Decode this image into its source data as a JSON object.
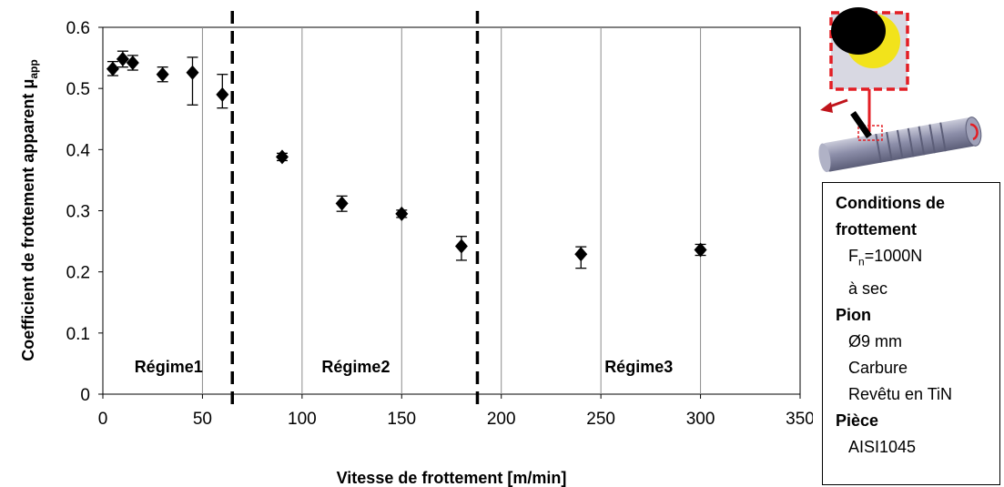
{
  "chart_data": {
    "type": "scatter",
    "xlabel": "Vitesse de frottement [m/min]",
    "ylabel": "Coefficient de frottement apparent μ",
    "ylabel_sub": "app",
    "xlim": [
      0,
      350
    ],
    "ylim": [
      0,
      0.6
    ],
    "x_ticks": [
      "0",
      "50",
      "100",
      "150",
      "200",
      "250",
      "300",
      "350"
    ],
    "y_ticks": [
      "0",
      "0.1",
      "0.2",
      "0.3",
      "0.4",
      "0.5",
      "0.6"
    ],
    "grid": "vertical",
    "marker_color": "#000000",
    "points": [
      {
        "x": 5,
        "y": 0.532,
        "err_low": 0.011,
        "err_high": 0.012
      },
      {
        "x": 10,
        "y": 0.548,
        "err_low": 0.013,
        "err_high": 0.013
      },
      {
        "x": 15,
        "y": 0.542,
        "err_low": 0.012,
        "err_high": 0.012
      },
      {
        "x": 30,
        "y": 0.523,
        "err_low": 0.012,
        "err_high": 0.012
      },
      {
        "x": 45,
        "y": 0.526,
        "err_low": 0.053,
        "err_high": 0.025
      },
      {
        "x": 60,
        "y": 0.49,
        "err_low": 0.022,
        "err_high": 0.033
      },
      {
        "x": 90,
        "y": 0.388,
        "err_low": 0.006,
        "err_high": 0.006
      },
      {
        "x": 120,
        "y": 0.312,
        "err_low": 0.013,
        "err_high": 0.012
      },
      {
        "x": 150,
        "y": 0.295,
        "err_low": 0.006,
        "err_high": 0.006
      },
      {
        "x": 180,
        "y": 0.242,
        "err_low": 0.023,
        "err_high": 0.016
      },
      {
        "x": 240,
        "y": 0.229,
        "err_low": 0.023,
        "err_high": 0.012
      },
      {
        "x": 300,
        "y": 0.236,
        "err_low": 0.009,
        "err_high": 0.009
      }
    ],
    "regime_boundaries": [
      65,
      188
    ],
    "regimes": [
      {
        "label": "Régime1",
        "x": 33
      },
      {
        "label": "Régime2",
        "x": 127
      },
      {
        "label": "Régime3",
        "x": 269
      }
    ],
    "regime_label_y": 0.045
  },
  "conditions": {
    "friction_title_1": "Conditions de",
    "friction_title_2": "frottement",
    "force_prefix": "F",
    "force_sub": "n",
    "force_value": "=1000N",
    "dry": "à sec",
    "pin_title": "Pion",
    "pin_diameter": "Ø9 mm",
    "pin_material": "Carbure",
    "pin_coating": "Revêtu en TiN",
    "part_title": "Pièce",
    "part_material": "AISI1045"
  },
  "illustration": {
    "frame_color": "#e31e24",
    "ball_color": "#f2e31b",
    "pin_color": "#000000",
    "cylinder_color": "#8d8faa"
  }
}
